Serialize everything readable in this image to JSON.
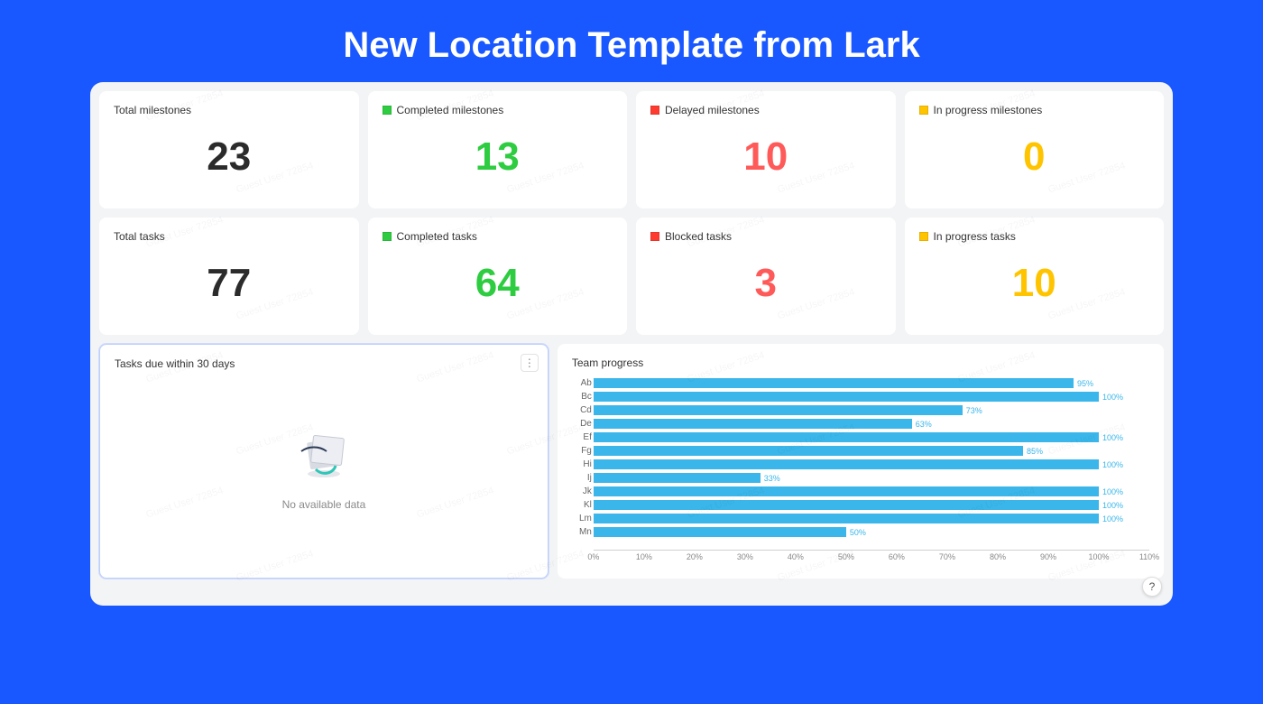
{
  "page": {
    "title": "New Location Template from Lark",
    "background_color": "#1957ff"
  },
  "watermark_text": "Guest User 72854",
  "stats": {
    "row1": [
      {
        "label": "Total milestones",
        "value": "23",
        "value_color": "#2b2b2b",
        "swatch": null
      },
      {
        "label": "Completed milestones",
        "value": "13",
        "value_color": "#2ecc40",
        "swatch": "#2ecc40"
      },
      {
        "label": "Delayed milestones",
        "value": "10",
        "value_color": "#ff5a5a",
        "swatch": "#ff3b30"
      },
      {
        "label": "In progress milestones",
        "value": "0",
        "value_color": "#ffc400",
        "swatch": "#ffc400"
      }
    ],
    "row2": [
      {
        "label": "Total tasks",
        "value": "77",
        "value_color": "#2b2b2b",
        "swatch": null
      },
      {
        "label": "Completed tasks",
        "value": "64",
        "value_color": "#2ecc40",
        "swatch": "#2ecc40"
      },
      {
        "label": "Blocked tasks",
        "value": "3",
        "value_color": "#ff5a5a",
        "swatch": "#ff3b30"
      },
      {
        "label": "In progress tasks",
        "value": "10",
        "value_color": "#ffc400",
        "swatch": "#ffc400"
      }
    ]
  },
  "panels": {
    "tasks_due": {
      "title": "Tasks due within 30 days",
      "empty_text": "No available data"
    },
    "team_progress": {
      "title": "Team progress",
      "chart": {
        "type": "horizontal-bar",
        "bar_color": "#3ab6ea",
        "value_label_color": "#3ab6ea",
        "axis_color": "#d0d0d0",
        "label_color": "#666666",
        "x_min": 0,
        "x_max": 110,
        "x_step": 10,
        "x_suffix": "%",
        "data": [
          {
            "label": "Ab",
            "value": 95
          },
          {
            "label": "Bc",
            "value": 100
          },
          {
            "label": "Cd",
            "value": 73
          },
          {
            "label": "De",
            "value": 63
          },
          {
            "label": "Ef",
            "value": 100
          },
          {
            "label": "Fg",
            "value": 85
          },
          {
            "label": "Hi",
            "value": 100
          },
          {
            "label": "Ij",
            "value": 33
          },
          {
            "label": "Jk",
            "value": 100
          },
          {
            "label": "Kl",
            "value": 100
          },
          {
            "label": "Lm",
            "value": 100
          },
          {
            "label": "Mn",
            "value": 50
          }
        ]
      }
    }
  }
}
